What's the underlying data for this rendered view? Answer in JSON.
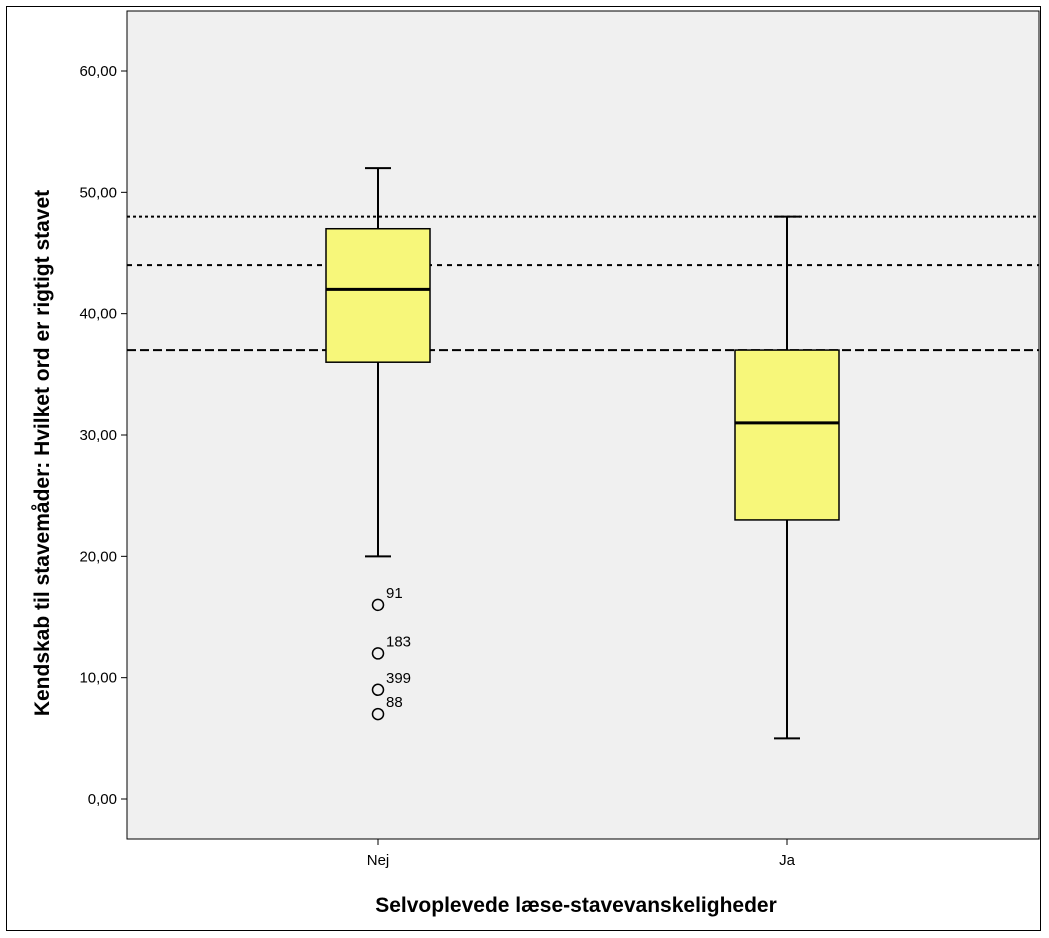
{
  "chart_data": {
    "type": "boxplot",
    "title": "",
    "xlabel": "Selvoplevede læse-stavevanskeligheder",
    "ylabel": "Kendskab til stavemåder: Hvilket ord er rigtigt stavet",
    "ylim": [
      -3.5,
      63.5
    ],
    "yticks": [
      0,
      10,
      20,
      30,
      40,
      50,
      60
    ],
    "ytick_labels": [
      "0,00",
      "10,00",
      "20,00",
      "30,00",
      "40,00",
      "50,00",
      "60,00"
    ],
    "categories": [
      "Nej",
      "Ja"
    ],
    "grid": false,
    "box_color": "#f7f77a",
    "plot_background": "#f0f0f0",
    "boxes": [
      {
        "category": "Nej",
        "whisker_low": 20,
        "q1": 36,
        "median": 42,
        "q3": 47,
        "whisker_high": 52,
        "outliers": [
          {
            "value": 16,
            "label": "91"
          },
          {
            "value": 12,
            "label": "183"
          },
          {
            "value": 9,
            "label": "399"
          },
          {
            "value": 7,
            "label": "88"
          }
        ]
      },
      {
        "category": "Ja",
        "whisker_low": 5,
        "q1": 23,
        "median": 31,
        "q3": 37,
        "whisker_high": 48,
        "outliers": []
      }
    ],
    "reference_lines": [
      {
        "value": 48,
        "style": "dotted"
      },
      {
        "value": 44,
        "style": "short-dash"
      },
      {
        "value": 37,
        "style": "dashed"
      }
    ]
  }
}
